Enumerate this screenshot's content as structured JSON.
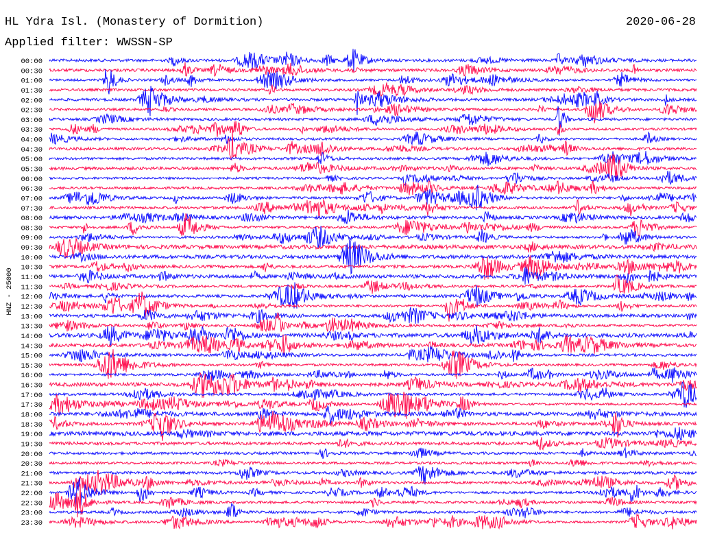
{
  "header": {
    "title": "HL Ydra Isl. (Monastery of Dormition)",
    "date": "2020-06-28",
    "filter": "Applied filter: WWSSN-SP"
  },
  "axis_label": "HNZ - 25000",
  "rows": [
    "00:00",
    "00:30",
    "01:00",
    "01:30",
    "02:00",
    "02:30",
    "03:00",
    "03:30",
    "04:00",
    "04:30",
    "05:00",
    "05:30",
    "06:00",
    "06:30",
    "07:00",
    "07:30",
    "08:00",
    "08:30",
    "09:00",
    "09:30",
    "10:00",
    "10:30",
    "11:00",
    "11:30",
    "12:00",
    "12:30",
    "13:00",
    "13:30",
    "14:00",
    "14:30",
    "15:00",
    "15:30",
    "16:00",
    "16:30",
    "17:00",
    "17:30",
    "18:00",
    "18:30",
    "19:00",
    "19:30",
    "20:00",
    "20:30",
    "21:00",
    "21:30",
    "22:00",
    "22:30",
    "23:00",
    "23:30"
  ]
}
